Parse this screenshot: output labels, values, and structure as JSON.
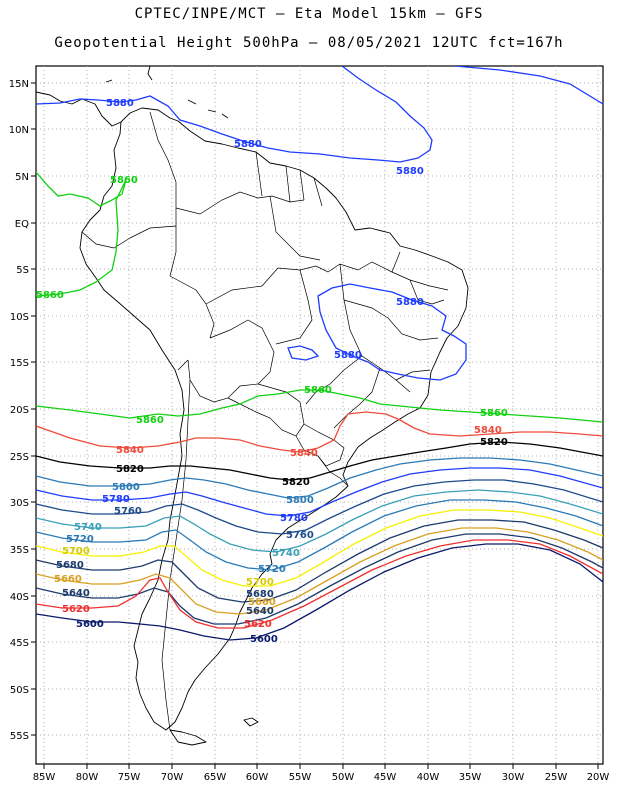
{
  "header": {
    "title_line1": "CPTEC/INPE/MCT –  Eta Model 15km – GFS",
    "title_line2": "Geopotential Height 500hPa – 08/05/2021 12UTC fct=167h"
  },
  "axes": {
    "lat_labels": [
      "15N",
      "10N",
      "5N",
      "EQ",
      "5S",
      "10S",
      "15S",
      "20S",
      "25S",
      "30S",
      "35S",
      "40S",
      "45S",
      "50S",
      "55S"
    ],
    "lon_labels": [
      "85W",
      "80W",
      "75W",
      "70W",
      "65W",
      "60W",
      "55W",
      "50W",
      "45W",
      "40W",
      "35W",
      "30W",
      "25W",
      "20W"
    ]
  },
  "colors": {
    "c5880": "#1e3cff",
    "c5860": "#10d010",
    "c5840": "#f04a3a",
    "c5820": "#000000",
    "c5800": "#2a7ab8",
    "c5780": "#1e3cff",
    "c5760": "#1c4a8c",
    "c5740": "#3aa0b8",
    "c5720": "#2a7ab8",
    "c5700": "#f8f000",
    "c5680": "#1c3a6c",
    "c5660": "#d8a020",
    "c5640": "#1c3a6c",
    "c5620": "#f03030",
    "c5600": "#0a1a6a"
  },
  "contour_labels": {
    "l5880_a": "5880",
    "l5880_b": "5880",
    "l5880_c": "5880",
    "l5880_d": "5880",
    "l5880_e": "5880",
    "l5860_a": "5860",
    "l5860_b": "5860",
    "l5860_c": "5860",
    "l5860_d": "5860",
    "l5860_e": "5860",
    "l5840_a": "5840",
    "l5840_b": "5840",
    "l5840_c": "5840",
    "l5820_a": "5820",
    "l5820_b": "5820",
    "l5820_c": "5820",
    "l5800_a": "5800",
    "l5800_b": "5800",
    "l5780_a": "5780",
    "l5780_b": "5780",
    "l5760_a": "5760",
    "l5760_b": "5760",
    "l5740_a": "5740",
    "l5740_b": "5740",
    "l5720_a": "5720",
    "l5720_b": "5720",
    "l5700_a": "5700",
    "l5700_b": "5700",
    "l5680_a": "5680",
    "l5680_b": "5680",
    "l5660_a": "5660",
    "l5660_b": "5660",
    "l5640_a": "5640",
    "l5640_b": "5640",
    "l5620_a": "5620",
    "l5620_b": "5620",
    "l5600_a": "5600",
    "l5600_b": "5600"
  }
}
